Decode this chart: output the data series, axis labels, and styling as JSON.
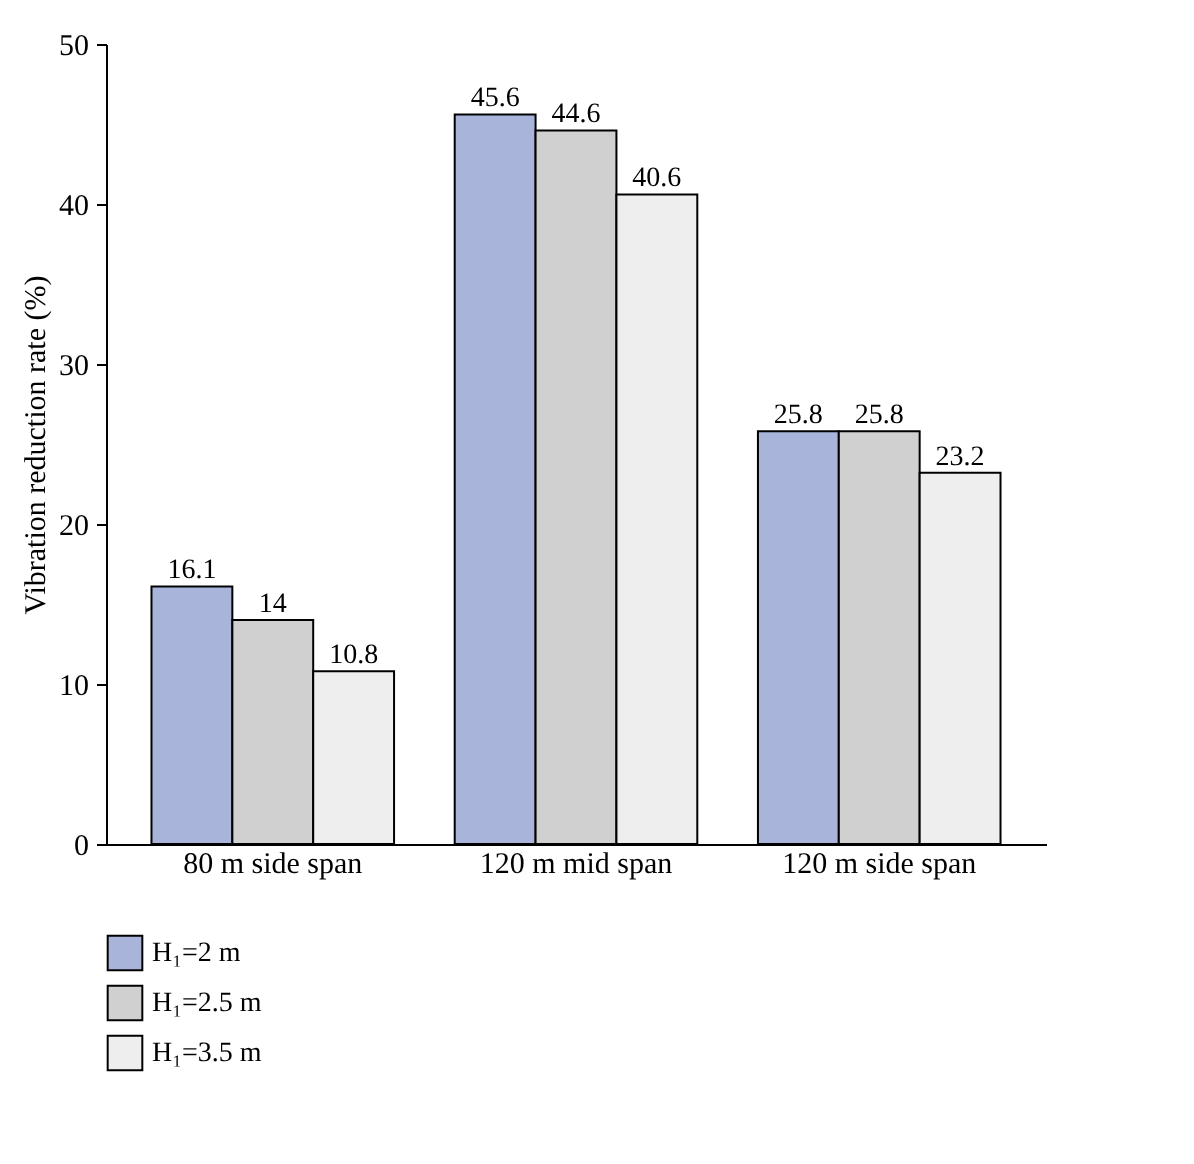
{
  "chart_data": {
    "type": "bar",
    "ylabel": "Vibration reduction rate (%)",
    "categories": [
      "80 m side span",
      "120 m mid span",
      "120 m side span"
    ],
    "series": [
      {
        "name": "H₁=2 m",
        "color": "#a9b4db",
        "values": [
          16.1,
          45.6,
          25.8
        ]
      },
      {
        "name": "H₁=2.5 m",
        "color": "#d0d0d0",
        "values": [
          14,
          44.6,
          25.8
        ]
      },
      {
        "name": "H₁=3.5 m",
        "color": "#eeeeee",
        "values": [
          10.8,
          40.6,
          23.2
        ]
      }
    ],
    "ylim": [
      0,
      50
    ],
    "yticks": [
      0,
      10,
      20,
      30,
      40,
      50
    ],
    "data_labels": true,
    "grid": false,
    "legend": "bottom left"
  }
}
